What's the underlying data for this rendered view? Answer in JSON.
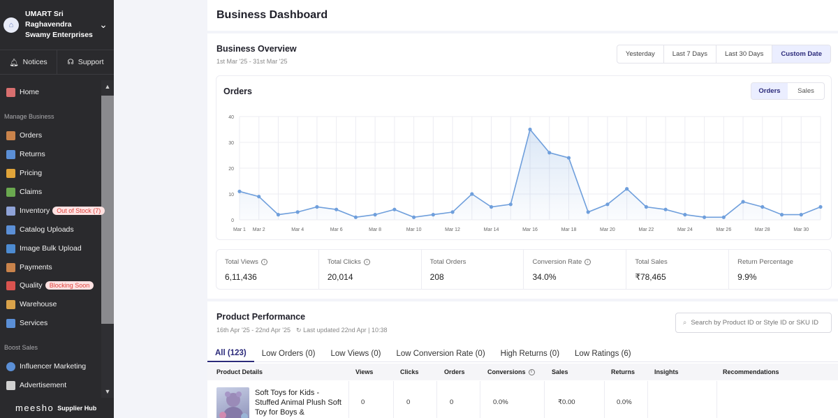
{
  "sidebar": {
    "store_name_1": "UMART Sri",
    "store_name_2": "Raghavendra",
    "store_name_3": "Swamy Enterprises",
    "notices": "Notices",
    "support": "Support",
    "home": "Home",
    "manage_business": "Manage Business",
    "items": [
      {
        "label": "Orders",
        "color": "#c9834b"
      },
      {
        "label": "Returns",
        "color": "#5b8fd6"
      },
      {
        "label": "Pricing",
        "color": "#e0a43a"
      },
      {
        "label": "Claims",
        "color": "#6aa84f"
      },
      {
        "label": "Inventory",
        "color": "#8fa3d8"
      },
      {
        "label": "Catalog Uploads",
        "color": "#5b8fd6"
      },
      {
        "label": "Image Bulk Upload",
        "color": "#4d8bd1"
      },
      {
        "label": "Payments",
        "color": "#c9834b"
      },
      {
        "label": "Quality",
        "color": "#d9534f"
      },
      {
        "label": "Warehouse",
        "color": "#d9a24a"
      },
      {
        "label": "Services",
        "color": "#5b8fd6"
      }
    ],
    "inventory_badge": "Out of Stock (7)",
    "quality_badge": "Blocking Soon",
    "boost_sales": "Boost Sales",
    "influencer": "Influencer Marketing",
    "advertisement": "Advertisement",
    "brand": "meesho",
    "brand_sub": "Supplier Hub"
  },
  "header": {
    "title": "Business Dashboard"
  },
  "overview": {
    "title": "Business Overview",
    "date_range": "1st Mar '25 - 31st Mar '25",
    "filters": [
      "Yesterday",
      "Last 7 Days",
      "Last 30 Days",
      "Custom Date"
    ],
    "active_filter": "Custom Date",
    "chart_title": "Orders",
    "toggle": [
      "Orders",
      "Sales"
    ]
  },
  "chart_data": {
    "type": "line",
    "title": "Orders",
    "x": [
      "Mar 1",
      "Mar 2",
      "Mar 3",
      "Mar 4",
      "Mar 5",
      "Mar 6",
      "Mar 7",
      "Mar 8",
      "Mar 9",
      "Mar 10",
      "Mar 11",
      "Mar 12",
      "Mar 13",
      "Mar 14",
      "Mar 15",
      "Mar 16",
      "Mar 17",
      "Mar 18",
      "Mar 19",
      "Mar 20",
      "Mar 21",
      "Mar 22",
      "Mar 23",
      "Mar 24",
      "Mar 25",
      "Mar 26",
      "Mar 27",
      "Mar 28",
      "Mar 29",
      "Mar 30",
      "Mar 31"
    ],
    "xtick_labels": [
      "Mar 1",
      "Mar 2",
      "Mar 4",
      "Mar 6",
      "Mar 8",
      "Mar 10",
      "Mar 12",
      "Mar 14",
      "Mar 16",
      "Mar 18",
      "Mar 20",
      "Mar 22",
      "Mar 24",
      "Mar 26",
      "Mar 28",
      "Mar 30"
    ],
    "series": [
      {
        "values": [
          11,
          9,
          2,
          3,
          5,
          4,
          1,
          2,
          4,
          1,
          2,
          3,
          10,
          5,
          6,
          35,
          26,
          24,
          3,
          6,
          12,
          5,
          4,
          2,
          1,
          1,
          7,
          5,
          2,
          2,
          5
        ]
      }
    ],
    "ylim": [
      0,
      40
    ],
    "yticks": [
      0,
      10,
      20,
      30,
      40
    ],
    "grid": true,
    "color": "#6f9fdc"
  },
  "stats": [
    {
      "label": "Total Views",
      "value": "6,11,436",
      "info": true
    },
    {
      "label": "Total Clicks",
      "value": "20,014",
      "info": true
    },
    {
      "label": "Total Orders",
      "value": "208",
      "info": false
    },
    {
      "label": "Conversion Rate",
      "value": "34.0%",
      "info": true
    },
    {
      "label": "Total Sales",
      "value": "₹78,465",
      "info": false
    },
    {
      "label": "Return Percentage",
      "value": "9.9%",
      "info": false
    }
  ],
  "performance": {
    "title": "Product Performance",
    "date_range": "16th Apr '25 - 22nd Apr '25",
    "last_updated": "Last updated 22nd Apr | 10:38",
    "search_placeholder": "Search by Product ID or Style ID or SKU ID",
    "tabs": [
      "All (123)",
      "Low Orders (0)",
      "Low Views (0)",
      "Low Conversion Rate (0)",
      "High Returns (0)",
      "Low Ratings (6)"
    ],
    "columns": [
      "Product Details",
      "Views",
      "Clicks",
      "Orders",
      "Conversions",
      "Sales",
      "Returns",
      "Insights",
      "Recommendations"
    ],
    "row": {
      "name": "Soft Toys for Kids - Stuffed Animal Plush Soft Toy for Boys &",
      "views": "0",
      "clicks": "0",
      "orders": "0",
      "conversions": "0.0%",
      "sales": "₹0.00",
      "returns": "0.0%"
    }
  }
}
